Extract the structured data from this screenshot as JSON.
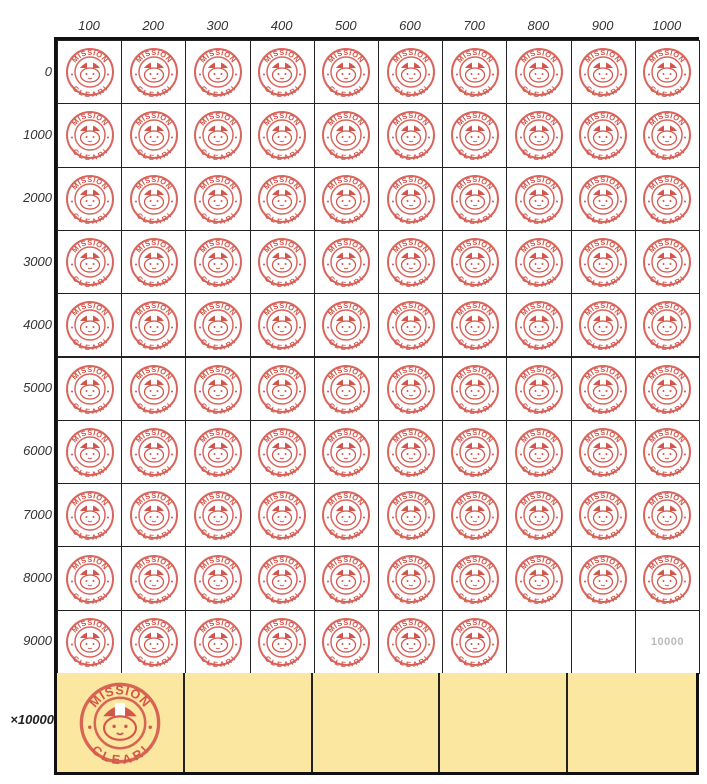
{
  "columns": [
    "100",
    "200",
    "300",
    "400",
    "500",
    "600",
    "700",
    "800",
    "900",
    "1000"
  ],
  "rows": [
    "0",
    "1000",
    "2000",
    "3000",
    "4000",
    "5000",
    "6000",
    "7000",
    "8000",
    "9000"
  ],
  "multiplier_label": "×10000",
  "stamp_text": {
    "top": "MISSION",
    "bottom": "CLEAR!"
  },
  "stamped_count": 97,
  "goal_label": "10000",
  "bottom_stamped_count": 1,
  "colors": {
    "stamp": "#d4554b",
    "bottom_bg": "#fbe7a0",
    "border": "#111111"
  }
}
